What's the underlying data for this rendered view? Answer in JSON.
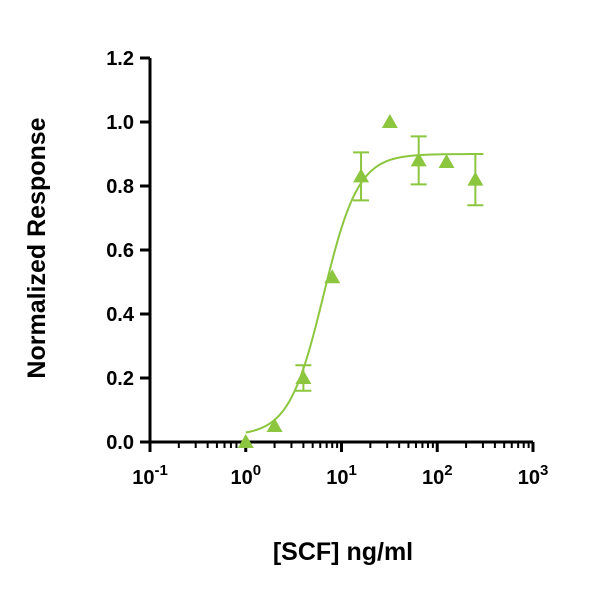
{
  "chart_data": {
    "type": "scatter",
    "xlabel": "[SCF] ng/ml",
    "ylabel": "Normalized Response",
    "x_scale": "log",
    "xlim": [
      0.1,
      1000
    ],
    "ylim": [
      0,
      1.2
    ],
    "x_ticks": [
      {
        "value": 0.1,
        "base": "10",
        "exp": "-1"
      },
      {
        "value": 1,
        "base": "10",
        "exp": "0"
      },
      {
        "value": 10,
        "base": "10",
        "exp": "1"
      },
      {
        "value": 100,
        "base": "10",
        "exp": "2"
      },
      {
        "value": 1000,
        "base": "10",
        "exp": "3"
      }
    ],
    "y_ticks": [
      {
        "value": 0.0,
        "label": "0.0"
      },
      {
        "value": 0.2,
        "label": "0.2"
      },
      {
        "value": 0.4,
        "label": "0.4"
      },
      {
        "value": 0.6,
        "label": "0.6"
      },
      {
        "value": 0.8,
        "label": "0.8"
      },
      {
        "value": 1.0,
        "label": "1.0"
      },
      {
        "value": 1.2,
        "label": "1.2"
      }
    ],
    "series": [
      {
        "color": "#8cc63f",
        "marker": "triangle",
        "points": [
          {
            "x": 1,
            "y": 0.0,
            "err": 0
          },
          {
            "x": 2,
            "y": 0.05,
            "err": 0
          },
          {
            "x": 4,
            "y": 0.2,
            "err": 0.04
          },
          {
            "x": 8,
            "y": 0.515,
            "err": 0
          },
          {
            "x": 16,
            "y": 0.83,
            "err": 0.075
          },
          {
            "x": 32,
            "y": 1.0,
            "err": 0
          },
          {
            "x": 64,
            "y": 0.88,
            "err": 0.075
          },
          {
            "x": 125,
            "y": 0.875,
            "err": 0
          },
          {
            "x": 250,
            "y": 0.82,
            "err": 0.08
          }
        ],
        "fit": {
          "model": "4PL",
          "bottom": 0.02,
          "top": 0.9,
          "ec50": 6.5,
          "hill": 2.4,
          "x_range": [
            1,
            250
          ]
        }
      }
    ],
    "grid": false,
    "legend": "none"
  }
}
